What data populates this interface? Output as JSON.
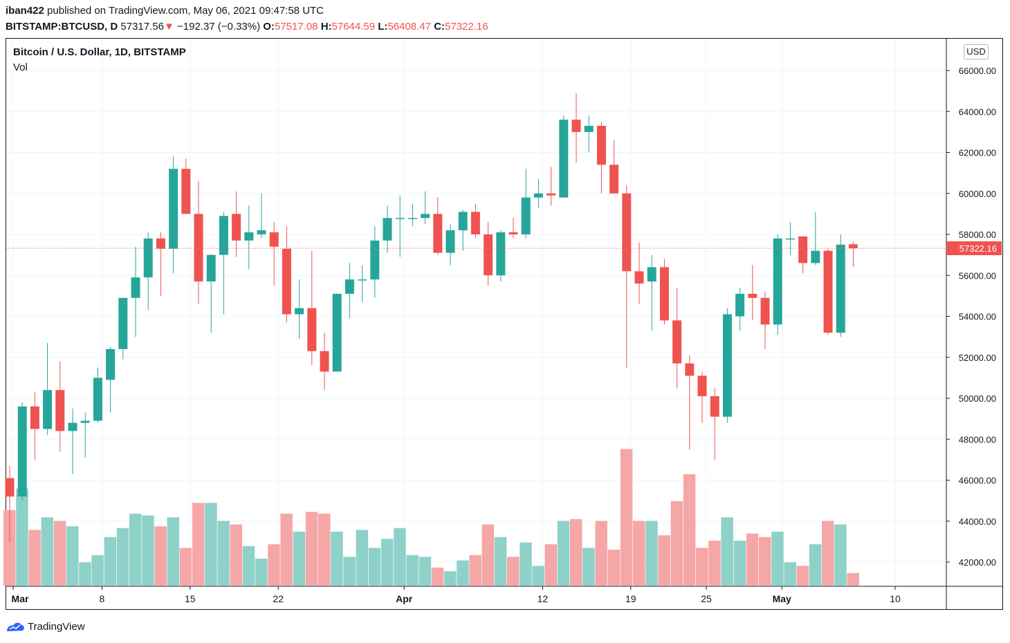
{
  "header": {
    "author": "iban422",
    "published": "published on TradingView.com, May 06, 2021 09:47:58 UTC",
    "symbol": "BITSTAMP:BTCUSD, D",
    "last": "57317.56",
    "change_arrow": "▼",
    "change": "−192.37 (−0.33%)",
    "o_label": "O:",
    "o_value": "57517.08",
    "h_label": "H:",
    "h_value": "57644.59",
    "l_label": "L:",
    "l_value": "56408.47",
    "c_label": "C:",
    "c_value": "57322.16"
  },
  "chart_title": "Bitcoin / U.S. Dollar, 1D, BITSTAMP",
  "volume_label": "Vol",
  "currency_button": "USD",
  "footer": {
    "brand": "TradingView"
  },
  "colors": {
    "up": "#26a69a",
    "down": "#ef5350",
    "vol_up": "#8ed1c9",
    "vol_down": "#f5a6a6",
    "grid": "#f0f3fa",
    "price_line": "#ef5350"
  },
  "chart_data": {
    "type": "candlestick",
    "title": "Bitcoin / U.S. Dollar, 1D, BITSTAMP",
    "ylim": [
      40800,
      67000
    ],
    "y_ticks": [
      "66000.00",
      "64000.00",
      "62000.00",
      "60000.00",
      "58000.00",
      "56000.00",
      "54000.00",
      "52000.00",
      "50000.00",
      "48000.00",
      "46000.00",
      "44000.00",
      "42000.00"
    ],
    "x_ticks": [
      {
        "label": "Mar",
        "day": 0
      },
      {
        "label": "8",
        "day": 7
      },
      {
        "label": "15",
        "day": 14
      },
      {
        "label": "22",
        "day": 21
      },
      {
        "label": "Apr",
        "day": 31
      },
      {
        "label": "12",
        "day": 42
      },
      {
        "label": "19",
        "day": 49
      },
      {
        "label": "25",
        "day": 55
      },
      {
        "label": "May",
        "day": 61
      },
      {
        "label": "10",
        "day": 70
      }
    ],
    "last_price": "57322.16",
    "candles": [
      {
        "d": "Feb 28",
        "o": 46100,
        "h": 46700,
        "l": 43000,
        "c": 45200
      },
      {
        "d": "Mar 1",
        "o": 45200,
        "h": 49800,
        "l": 45000,
        "c": 49600
      },
      {
        "d": "Mar 2",
        "o": 49600,
        "h": 50300,
        "l": 47000,
        "c": 48500
      },
      {
        "d": "Mar 3",
        "o": 48500,
        "h": 52700,
        "l": 48200,
        "c": 50400
      },
      {
        "d": "Mar 4",
        "o": 50400,
        "h": 51800,
        "l": 47400,
        "c": 48400
      },
      {
        "d": "Mar 5",
        "o": 48400,
        "h": 49500,
        "l": 46300,
        "c": 48800
      },
      {
        "d": "Mar 6",
        "o": 48800,
        "h": 49300,
        "l": 47100,
        "c": 48900
      },
      {
        "d": "Mar 7",
        "o": 48900,
        "h": 51500,
        "l": 48800,
        "c": 51000
      },
      {
        "d": "Mar 8",
        "o": 50900,
        "h": 52500,
        "l": 49300,
        "c": 52400
      },
      {
        "d": "Mar 9",
        "o": 52400,
        "h": 54900,
        "l": 51900,
        "c": 54900
      },
      {
        "d": "Mar 10",
        "o": 54900,
        "h": 57400,
        "l": 53000,
        "c": 55900
      },
      {
        "d": "Mar 11",
        "o": 55900,
        "h": 58100,
        "l": 54300,
        "c": 57800
      },
      {
        "d": "Mar 12",
        "o": 57800,
        "h": 58100,
        "l": 55000,
        "c": 57300
      },
      {
        "d": "Mar 13",
        "o": 57300,
        "h": 61800,
        "l": 56100,
        "c": 61200
      },
      {
        "d": "Mar 14",
        "o": 61200,
        "h": 61700,
        "l": 59000,
        "c": 59000
      },
      {
        "d": "Mar 15",
        "o": 59000,
        "h": 60600,
        "l": 54600,
        "c": 55700
      },
      {
        "d": "Mar 16",
        "o": 55700,
        "h": 57000,
        "l": 53200,
        "c": 57000
      },
      {
        "d": "Mar 17",
        "o": 57000,
        "h": 59100,
        "l": 54100,
        "c": 58900
      },
      {
        "d": "Mar 18",
        "o": 59000,
        "h": 60100,
        "l": 56900,
        "c": 57700
      },
      {
        "d": "Mar 19",
        "o": 57700,
        "h": 59400,
        "l": 56300,
        "c": 58100
      },
      {
        "d": "Mar 20",
        "o": 58000,
        "h": 60000,
        "l": 57800,
        "c": 58200
      },
      {
        "d": "Mar 21",
        "o": 58100,
        "h": 58600,
        "l": 55500,
        "c": 57400
      },
      {
        "d": "Mar 22",
        "o": 57300,
        "h": 58400,
        "l": 53700,
        "c": 54100
      },
      {
        "d": "Mar 23",
        "o": 54100,
        "h": 55800,
        "l": 52900,
        "c": 54400
      },
      {
        "d": "Mar 24",
        "o": 54400,
        "h": 57200,
        "l": 51600,
        "c": 52300
      },
      {
        "d": "Mar 25",
        "o": 52300,
        "h": 53200,
        "l": 50400,
        "c": 51300
      },
      {
        "d": "Mar 26",
        "o": 51300,
        "h": 55100,
        "l": 51300,
        "c": 55100
      },
      {
        "d": "Mar 27",
        "o": 55100,
        "h": 56600,
        "l": 53900,
        "c": 55800
      },
      {
        "d": "Mar 28",
        "o": 55800,
        "h": 56500,
        "l": 54700,
        "c": 55800
      },
      {
        "d": "Mar 29",
        "o": 55800,
        "h": 58400,
        "l": 54900,
        "c": 57700
      },
      {
        "d": "Mar 30",
        "o": 57700,
        "h": 59400,
        "l": 57100,
        "c": 58800
      },
      {
        "d": "Mar 31",
        "o": 58800,
        "h": 59900,
        "l": 56900,
        "c": 58800
      },
      {
        "d": "Apr 1",
        "o": 58800,
        "h": 59500,
        "l": 58400,
        "c": 58800
      },
      {
        "d": "Apr 2",
        "o": 58800,
        "h": 60100,
        "l": 58500,
        "c": 59000
      },
      {
        "d": "Apr 3",
        "o": 59000,
        "h": 59800,
        "l": 57000,
        "c": 57100
      },
      {
        "d": "Apr 4",
        "o": 57100,
        "h": 58500,
        "l": 56500,
        "c": 58200
      },
      {
        "d": "Apr 5",
        "o": 58200,
        "h": 59200,
        "l": 57200,
        "c": 59100
      },
      {
        "d": "Apr 6",
        "o": 59100,
        "h": 59500,
        "l": 57800,
        "c": 58000
      },
      {
        "d": "Apr 7",
        "o": 58000,
        "h": 58600,
        "l": 55500,
        "c": 56000
      },
      {
        "d": "Apr 8",
        "o": 56000,
        "h": 58200,
        "l": 55700,
        "c": 58100
      },
      {
        "d": "Apr 9",
        "o": 58100,
        "h": 58800,
        "l": 57800,
        "c": 58000
      },
      {
        "d": "Apr 10",
        "o": 58000,
        "h": 61200,
        "l": 57800,
        "c": 59800
      },
      {
        "d": "Apr 11",
        "o": 59800,
        "h": 60700,
        "l": 59300,
        "c": 60000
      },
      {
        "d": "Apr 12",
        "o": 60000,
        "h": 61300,
        "l": 59400,
        "c": 59900
      },
      {
        "d": "Apr 13",
        "o": 59800,
        "h": 63800,
        "l": 59800,
        "c": 63600
      },
      {
        "d": "Apr 14",
        "o": 63600,
        "h": 64900,
        "l": 61500,
        "c": 63000
      },
      {
        "d": "Apr 15",
        "o": 63000,
        "h": 63800,
        "l": 62000,
        "c": 63300
      },
      {
        "d": "Apr 16",
        "o": 63300,
        "h": 63500,
        "l": 60000,
        "c": 61400
      },
      {
        "d": "Apr 17",
        "o": 61400,
        "h": 62600,
        "l": 60000,
        "c": 60000
      },
      {
        "d": "Apr 18",
        "o": 60000,
        "h": 60400,
        "l": 51500,
        "c": 56200
      },
      {
        "d": "Apr 19",
        "o": 56200,
        "h": 57600,
        "l": 54600,
        "c": 55600
      },
      {
        "d": "Apr 20",
        "o": 55700,
        "h": 57000,
        "l": 53300,
        "c": 56400
      },
      {
        "d": "Apr 21",
        "o": 56400,
        "h": 56800,
        "l": 53600,
        "c": 53800
      },
      {
        "d": "Apr 22",
        "o": 53800,
        "h": 55400,
        "l": 50500,
        "c": 51700
      },
      {
        "d": "Apr 23",
        "o": 51700,
        "h": 52100,
        "l": 47500,
        "c": 51100
      },
      {
        "d": "Apr 24",
        "o": 51100,
        "h": 51300,
        "l": 48800,
        "c": 50100
      },
      {
        "d": "Apr 25",
        "o": 50100,
        "h": 50500,
        "l": 47000,
        "c": 49100
      },
      {
        "d": "Apr 26",
        "o": 49100,
        "h": 54400,
        "l": 48800,
        "c": 54100
      },
      {
        "d": "Apr 27",
        "o": 54000,
        "h": 55400,
        "l": 53300,
        "c": 55100
      },
      {
        "d": "Apr 28",
        "o": 55100,
        "h": 56500,
        "l": 53800,
        "c": 54900
      },
      {
        "d": "Apr 29",
        "o": 54900,
        "h": 55200,
        "l": 52400,
        "c": 53600
      },
      {
        "d": "Apr 30",
        "o": 53600,
        "h": 58000,
        "l": 53100,
        "c": 57800
      },
      {
        "d": "May 1",
        "o": 57800,
        "h": 58600,
        "l": 57000,
        "c": 57800
      },
      {
        "d": "May 2",
        "o": 57900,
        "h": 57900,
        "l": 56100,
        "c": 56600
      },
      {
        "d": "May 3",
        "o": 56600,
        "h": 59100,
        "l": 56500,
        "c": 57200
      },
      {
        "d": "May 4",
        "o": 57200,
        "h": 57300,
        "l": 53100,
        "c": 53200
      },
      {
        "d": "May 5",
        "o": 53200,
        "h": 58000,
        "l": 53000,
        "c": 57500
      },
      {
        "d": "May 6",
        "o": 57517.08,
        "h": 57644.59,
        "l": 56408.47,
        "c": 57322.16
      }
    ],
    "volume_relative": [
      0.42,
      0.54,
      0.31,
      0.38,
      0.36,
      0.33,
      0.13,
      0.17,
      0.27,
      0.32,
      0.4,
      0.39,
      0.33,
      0.38,
      0.21,
      0.46,
      0.46,
      0.36,
      0.34,
      0.22,
      0.15,
      0.23,
      0.4,
      0.3,
      0.41,
      0.4,
      0.3,
      0.16,
      0.31,
      0.21,
      0.26,
      0.32,
      0.17,
      0.16,
      0.1,
      0.08,
      0.14,
      0.17,
      0.34,
      0.27,
      0.16,
      0.24,
      0.11,
      0.23,
      0.36,
      0.37,
      0.21,
      0.36,
      0.2,
      0.76,
      0.36,
      0.36,
      0.28,
      0.47,
      0.62,
      0.21,
      0.25,
      0.38,
      0.25,
      0.29,
      0.27,
      0.3,
      0.13,
      0.11,
      0.23,
      0.36,
      0.34,
      0.07
    ]
  }
}
